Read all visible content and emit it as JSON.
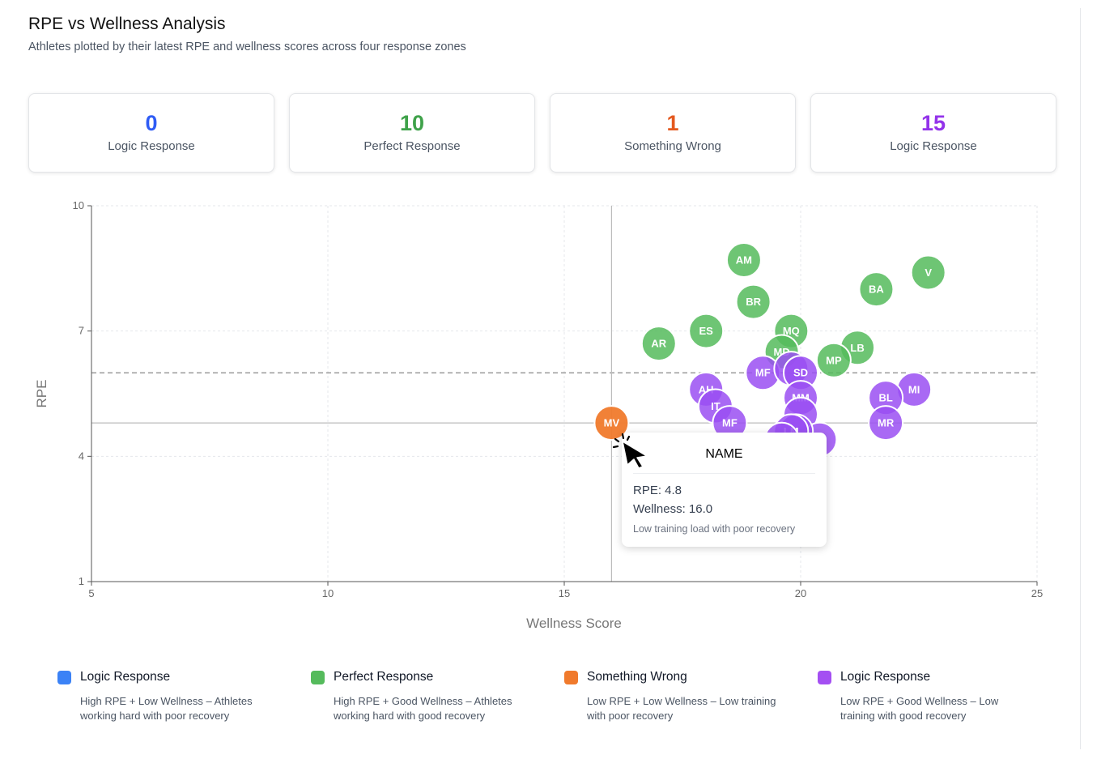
{
  "header": {
    "title": "RPE vs Wellness Analysis",
    "subtitle": "Athletes plotted by their latest RPE and wellness scores across four response zones"
  },
  "colors": {
    "blue": "#2f5cf5",
    "green": "#55bb5c",
    "orange": "#f07a2c",
    "purple": "#9a4ff2"
  },
  "stats": [
    {
      "value": "0",
      "label": "Logic Response",
      "color": "#2f5cf5"
    },
    {
      "value": "10",
      "label": "Perfect Response",
      "color": "#3fa24a"
    },
    {
      "value": "1",
      "label": "Something Wrong",
      "color": "#e4591f"
    },
    {
      "value": "15",
      "label": "Logic Response",
      "color": "#9333ea"
    }
  ],
  "chart_data": {
    "type": "scatter",
    "xlabel": "Wellness Score",
    "ylabel": "RPE",
    "xlim": [
      5,
      25
    ],
    "ylim": [
      1,
      10
    ],
    "xticks": [
      5,
      10,
      15,
      20,
      25
    ],
    "yticks": [
      1,
      4,
      7,
      10
    ],
    "threshold_rpe": 6.0,
    "crosshair": {
      "x": 16.0,
      "y": 4.8
    },
    "points": [
      {
        "label": "AM",
        "x": 18.8,
        "y": 8.7,
        "zone": "perfect"
      },
      {
        "label": "V",
        "x": 22.7,
        "y": 8.4,
        "zone": "perfect"
      },
      {
        "label": "BA",
        "x": 21.6,
        "y": 8.0,
        "zone": "perfect"
      },
      {
        "label": "BR",
        "x": 19.0,
        "y": 7.7,
        "zone": "perfect"
      },
      {
        "label": "ES",
        "x": 18.0,
        "y": 7.0,
        "zone": "perfect"
      },
      {
        "label": "MQ",
        "x": 19.8,
        "y": 7.0,
        "zone": "perfect"
      },
      {
        "label": "AR",
        "x": 17.0,
        "y": 6.7,
        "zone": "perfect"
      },
      {
        "label": "MD",
        "x": 19.6,
        "y": 6.5,
        "zone": "perfect"
      },
      {
        "label": "LB",
        "x": 21.2,
        "y": 6.6,
        "zone": "perfect"
      },
      {
        "label": "MP",
        "x": 20.7,
        "y": 6.3,
        "zone": "perfect"
      },
      {
        "label": "MF",
        "x": 19.2,
        "y": 6.0,
        "zone": "logic-low"
      },
      {
        "label": "",
        "x": 19.8,
        "y": 6.1,
        "zone": "logic-low"
      },
      {
        "label": "SD",
        "x": 20.0,
        "y": 6.0,
        "zone": "logic-low"
      },
      {
        "label": "MI",
        "x": 22.4,
        "y": 5.6,
        "zone": "logic-low"
      },
      {
        "label": "AH",
        "x": 18.0,
        "y": 5.6,
        "zone": "logic-low"
      },
      {
        "label": "MM",
        "x": 20.0,
        "y": 5.4,
        "zone": "logic-low"
      },
      {
        "label": "BL",
        "x": 21.8,
        "y": 5.4,
        "zone": "logic-low"
      },
      {
        "label": "IT",
        "x": 18.2,
        "y": 5.2,
        "zone": "logic-low"
      },
      {
        "label": "",
        "x": 20.0,
        "y": 5.0,
        "zone": "logic-low"
      },
      {
        "label": "MF",
        "x": 18.5,
        "y": 4.8,
        "zone": "logic-low"
      },
      {
        "label": "MR",
        "x": 21.8,
        "y": 4.8,
        "zone": "logic-low"
      },
      {
        "label": "",
        "x": 20.4,
        "y": 4.4,
        "zone": "logic-low"
      },
      {
        "label": "",
        "x": 19.9,
        "y": 4.6,
        "zone": "logic-low"
      },
      {
        "label": "LM",
        "x": 19.8,
        "y": 4.6,
        "zone": "logic-low"
      },
      {
        "label": "",
        "x": 19.6,
        "y": 4.4,
        "zone": "logic-low"
      },
      {
        "label": "MV",
        "x": 16.0,
        "y": 4.8,
        "zone": "wrong"
      }
    ]
  },
  "tooltip": {
    "name": "NAME",
    "rpe": "RPE: 4.8",
    "wellness": "Wellness: 16.0",
    "description": "Low training load with poor recovery"
  },
  "legend": [
    {
      "title": "Logic Response",
      "desc": "High RPE + Low Wellness – Athletes working hard with poor recovery",
      "color": "#3b82f6"
    },
    {
      "title": "Perfect Response",
      "desc": "High RPE + Good Wellness – Athletes working hard with good recovery",
      "color": "#55bb5c"
    },
    {
      "title": "Something Wrong",
      "desc": "Low RPE + Low Wellness – Low training with poor recovery",
      "color": "#f07a2c"
    },
    {
      "title": "Logic Response",
      "desc": "Low RPE + Good Wellness – Low training with good recovery",
      "color": "#a44ff2"
    }
  ]
}
